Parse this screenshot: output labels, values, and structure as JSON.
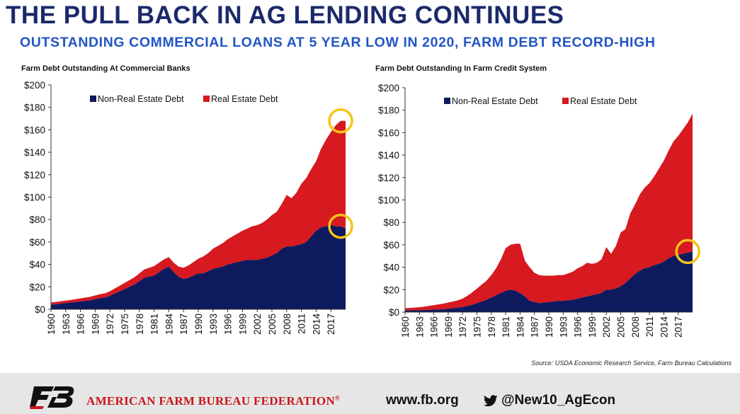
{
  "header": {
    "title": "THE PULL BACK IN AG LENDING CONTINUES",
    "subtitle": "OUTSTANDING COMMERCIAL LOANS AT 5 YEAR LOW IN 2020, FARM DEBT RECORD-HIGH"
  },
  "colors": {
    "non_real_estate": "#0e1a5e",
    "real_estate": "#d71920",
    "highlight": "#f5c518",
    "title": "#1b2a6b",
    "subtitle": "#2255c4",
    "brand_red": "#c8161d"
  },
  "chart_data": [
    {
      "type": "area",
      "stacked": true,
      "title": "Farm Debt Outstanding At Commercial Banks",
      "ylim": [
        0,
        200
      ],
      "yticks": [
        0,
        20,
        40,
        60,
        80,
        100,
        120,
        140,
        160,
        180,
        200
      ],
      "ytick_labels": [
        "$0",
        "$20",
        "$40",
        "$60",
        "$80",
        "$100",
        "$120",
        "$140",
        "$160",
        "$180",
        "$200"
      ],
      "xtick_labels": [
        "1960",
        "1963",
        "1966",
        "1969",
        "1972",
        "1975",
        "1978",
        "1981",
        "1984",
        "1987",
        "1990",
        "1993",
        "1996",
        "1999",
        "2002",
        "2005",
        "2008",
        "2011",
        "2014",
        "2017"
      ],
      "x": [
        1960,
        1961,
        1962,
        1963,
        1964,
        1965,
        1966,
        1967,
        1968,
        1969,
        1970,
        1971,
        1972,
        1973,
        1974,
        1975,
        1976,
        1977,
        1978,
        1979,
        1980,
        1981,
        1982,
        1983,
        1984,
        1985,
        1986,
        1987,
        1988,
        1989,
        1990,
        1991,
        1992,
        1993,
        1994,
        1995,
        1996,
        1997,
        1998,
        1999,
        2000,
        2001,
        2002,
        2003,
        2004,
        2005,
        2006,
        2007,
        2008,
        2009,
        2010,
        2011,
        2012,
        2013,
        2014,
        2015,
        2016,
        2017,
        2018,
        2019,
        2020
      ],
      "series": [
        {
          "name": "Non-Real Estate Debt",
          "values": [
            4,
            4.5,
            5,
            5.5,
            6,
            6.5,
            7,
            7.5,
            8,
            9,
            10,
            10.5,
            12,
            14,
            16,
            18,
            20,
            22,
            25,
            28,
            29,
            30,
            33,
            36,
            38,
            33,
            29,
            27,
            28,
            30,
            32,
            32,
            34,
            36,
            37,
            38,
            40,
            41,
            42,
            43,
            44,
            44,
            44,
            45,
            46,
            48,
            50,
            54,
            56,
            56,
            57,
            58,
            60,
            65,
            70,
            73,
            74,
            75,
            74,
            74,
            72
          ]
        },
        {
          "name": "Real Estate Debt",
          "values": [
            2,
            2,
            2.1,
            2.2,
            2.3,
            2.5,
            2.7,
            2.9,
            3.1,
            3.3,
            3.5,
            3.7,
            4,
            4.5,
            5,
            5.5,
            6,
            6.5,
            7,
            7.5,
            8,
            8.5,
            8.5,
            8.5,
            8.5,
            8.5,
            9,
            10,
            11,
            12,
            13,
            15,
            16,
            18,
            19.5,
            21,
            22.5,
            24,
            25.5,
            27,
            28,
            30,
            31,
            32,
            34,
            36,
            37,
            40,
            46,
            43,
            47,
            54,
            57,
            60,
            62,
            70,
            77,
            83,
            90,
            94,
            96
          ]
        }
      ],
      "legend": [
        "Non-Real Estate Debt",
        "Real Estate Debt"
      ],
      "annotations": [
        "circle-total-2020",
        "circle-non-real-estate-2020"
      ]
    },
    {
      "type": "area",
      "stacked": true,
      "title": "Farm Debt Outstanding In Farm Credit System",
      "ylim": [
        0,
        200
      ],
      "yticks": [
        0,
        20,
        40,
        60,
        80,
        100,
        120,
        140,
        160,
        180,
        200
      ],
      "ytick_labels": [
        "$0",
        "$20",
        "$40",
        "$60",
        "$80",
        "$100",
        "$120",
        "$140",
        "$160",
        "$180",
        "$200"
      ],
      "xtick_labels": [
        "1960",
        "1963",
        "1966",
        "1969",
        "1972",
        "1975",
        "1978",
        "1981",
        "1984",
        "1987",
        "1990",
        "1993",
        "1996",
        "1999",
        "2002",
        "2005",
        "2008",
        "2011",
        "2014",
        "2017"
      ],
      "x": [
        1960,
        1961,
        1962,
        1963,
        1964,
        1965,
        1966,
        1967,
        1968,
        1969,
        1970,
        1971,
        1972,
        1973,
        1974,
        1975,
        1976,
        1977,
        1978,
        1979,
        1980,
        1981,
        1982,
        1983,
        1984,
        1985,
        1986,
        1987,
        1988,
        1989,
        1990,
        1991,
        1992,
        1993,
        1994,
        1995,
        1996,
        1997,
        1998,
        1999,
        2000,
        2001,
        2002,
        2003,
        2004,
        2005,
        2006,
        2007,
        2008,
        2009,
        2010,
        2011,
        2012,
        2013,
        2014,
        2015,
        2016,
        2017,
        2018,
        2019,
        2020
      ],
      "series": [
        {
          "name": "Non-Real Estate Debt",
          "values": [
            1.5,
            1.5,
            1.6,
            1.7,
            1.8,
            2,
            2.2,
            2.4,
            2.6,
            3,
            3.5,
            4,
            4.5,
            5.5,
            6.5,
            8,
            9.5,
            11,
            13,
            15,
            17,
            19,
            20,
            19,
            17,
            14,
            10,
            9,
            8,
            8.5,
            9,
            9.5,
            10,
            10,
            10.5,
            11,
            12,
            13,
            14,
            15,
            16,
            17,
            20,
            20,
            21,
            23,
            26,
            30,
            34,
            37,
            39,
            40,
            42,
            43,
            45,
            48,
            50,
            51,
            52,
            53,
            54
          ]
        },
        {
          "name": "Real Estate Debt",
          "values": [
            2,
            2.2,
            2.4,
            2.6,
            3,
            3.5,
            4,
            4.5,
            5,
            5.5,
            6,
            6.5,
            7.5,
            9,
            11,
            13,
            15,
            17,
            20,
            24,
            30,
            38,
            40,
            42,
            44,
            32,
            30,
            26,
            25,
            24,
            23.5,
            23,
            23,
            23,
            24,
            25,
            27,
            28,
            30,
            28,
            28,
            30,
            38,
            32,
            38,
            48,
            48,
            58,
            62,
            68,
            72,
            75,
            79,
            85,
            90,
            96,
            102,
            106,
            111,
            116,
            123
          ]
        }
      ],
      "legend": [
        "Non-Real Estate Debt",
        "Real Estate Debt"
      ],
      "annotations": [
        "circle-non-real-estate-2020"
      ]
    }
  ],
  "source": "Source: USDA Economic Research Service, Farm Bureau Calculations",
  "footer": {
    "logo_text": "FB",
    "org_name": "AMERICAN FARM BUREAU FEDERATION",
    "registered_mark": "®",
    "website": "www.fb.org",
    "twitter_handle": "@New10_AgEcon",
    "twitter_icon": "bird-icon"
  }
}
